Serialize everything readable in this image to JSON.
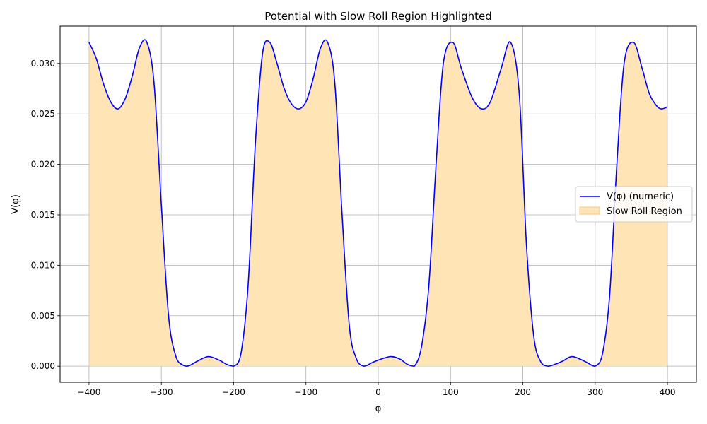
{
  "chart_data": {
    "type": "line",
    "title": "Potential with Slow Roll Region Highlighted",
    "xlabel": "φ",
    "ylabel": "V(φ)",
    "xlim": [
      -440,
      440
    ],
    "ylim": [
      -0.0016,
      0.0337
    ],
    "x_ticks": [
      -400,
      -300,
      -200,
      -100,
      0,
      100,
      200,
      300,
      400
    ],
    "x_tick_labels": [
      "−400",
      "−300",
      "−200",
      "−100",
      "0",
      "100",
      "200",
      "300",
      "400"
    ],
    "y_ticks": [
      0.0,
      0.005,
      0.01,
      0.015,
      0.02,
      0.025,
      0.03
    ],
    "y_tick_labels": [
      "0.000",
      "0.005",
      "0.010",
      "0.015",
      "0.020",
      "0.025",
      "0.030"
    ],
    "grid": true,
    "legend_position": "center-right",
    "series": [
      {
        "name": "V(φ) (numeric)",
        "kind": "line",
        "color": "#0000ff",
        "x": [
          -400,
          -390,
          -380,
          -370,
          -360,
          -350,
          -340,
          -330,
          -320,
          -310,
          -300,
          -290,
          -280,
          -270,
          -265,
          -260,
          -250,
          -235,
          -220,
          -210,
          -200,
          -190,
          -180,
          -170,
          -160,
          -150,
          -140,
          -130,
          -120,
          -110,
          -100,
          -90,
          -80,
          -70,
          -60,
          -50,
          -40,
          -30,
          -20,
          -15,
          -10,
          0,
          17,
          30,
          40,
          50,
          60,
          70,
          80,
          90,
          103,
          115,
          130,
          143,
          155,
          170,
          183,
          195,
          205,
          215,
          225,
          235,
          245,
          255,
          268,
          285,
          295,
          300,
          310,
          320,
          330,
          340,
          353,
          365,
          375,
          385,
          392,
          400
        ],
        "y": [
          0.0321,
          0.0305,
          0.028,
          0.0262,
          0.0255,
          0.0265,
          0.0288,
          0.0316,
          0.0321,
          0.028,
          0.016,
          0.005,
          0.001,
          0.0001,
          0.0,
          0.0001,
          0.0005,
          0.00095,
          0.0006,
          0.0002,
          0.0,
          0.0012,
          0.008,
          0.022,
          0.031,
          0.0321,
          0.03,
          0.0275,
          0.026,
          0.0255,
          0.0262,
          0.0285,
          0.0315,
          0.0321,
          0.028,
          0.015,
          0.004,
          0.0007,
          0.0,
          0.0001,
          0.0003,
          0.0006,
          0.00095,
          0.0007,
          0.0002,
          0.0,
          0.002,
          0.008,
          0.02,
          0.03,
          0.0321,
          0.0295,
          0.0266,
          0.0255,
          0.0262,
          0.0295,
          0.0321,
          0.027,
          0.012,
          0.003,
          0.0004,
          0.0,
          0.0002,
          0.0005,
          0.00095,
          0.0005,
          0.0001,
          0.0,
          0.0012,
          0.007,
          0.02,
          0.03,
          0.0321,
          0.0295,
          0.027,
          0.0258,
          0.0255,
          0.0257
        ]
      },
      {
        "name": "Slow Roll Region",
        "kind": "fill",
        "color": "#ffe4b5",
        "fill_under": "V(φ) (numeric)"
      }
    ]
  }
}
